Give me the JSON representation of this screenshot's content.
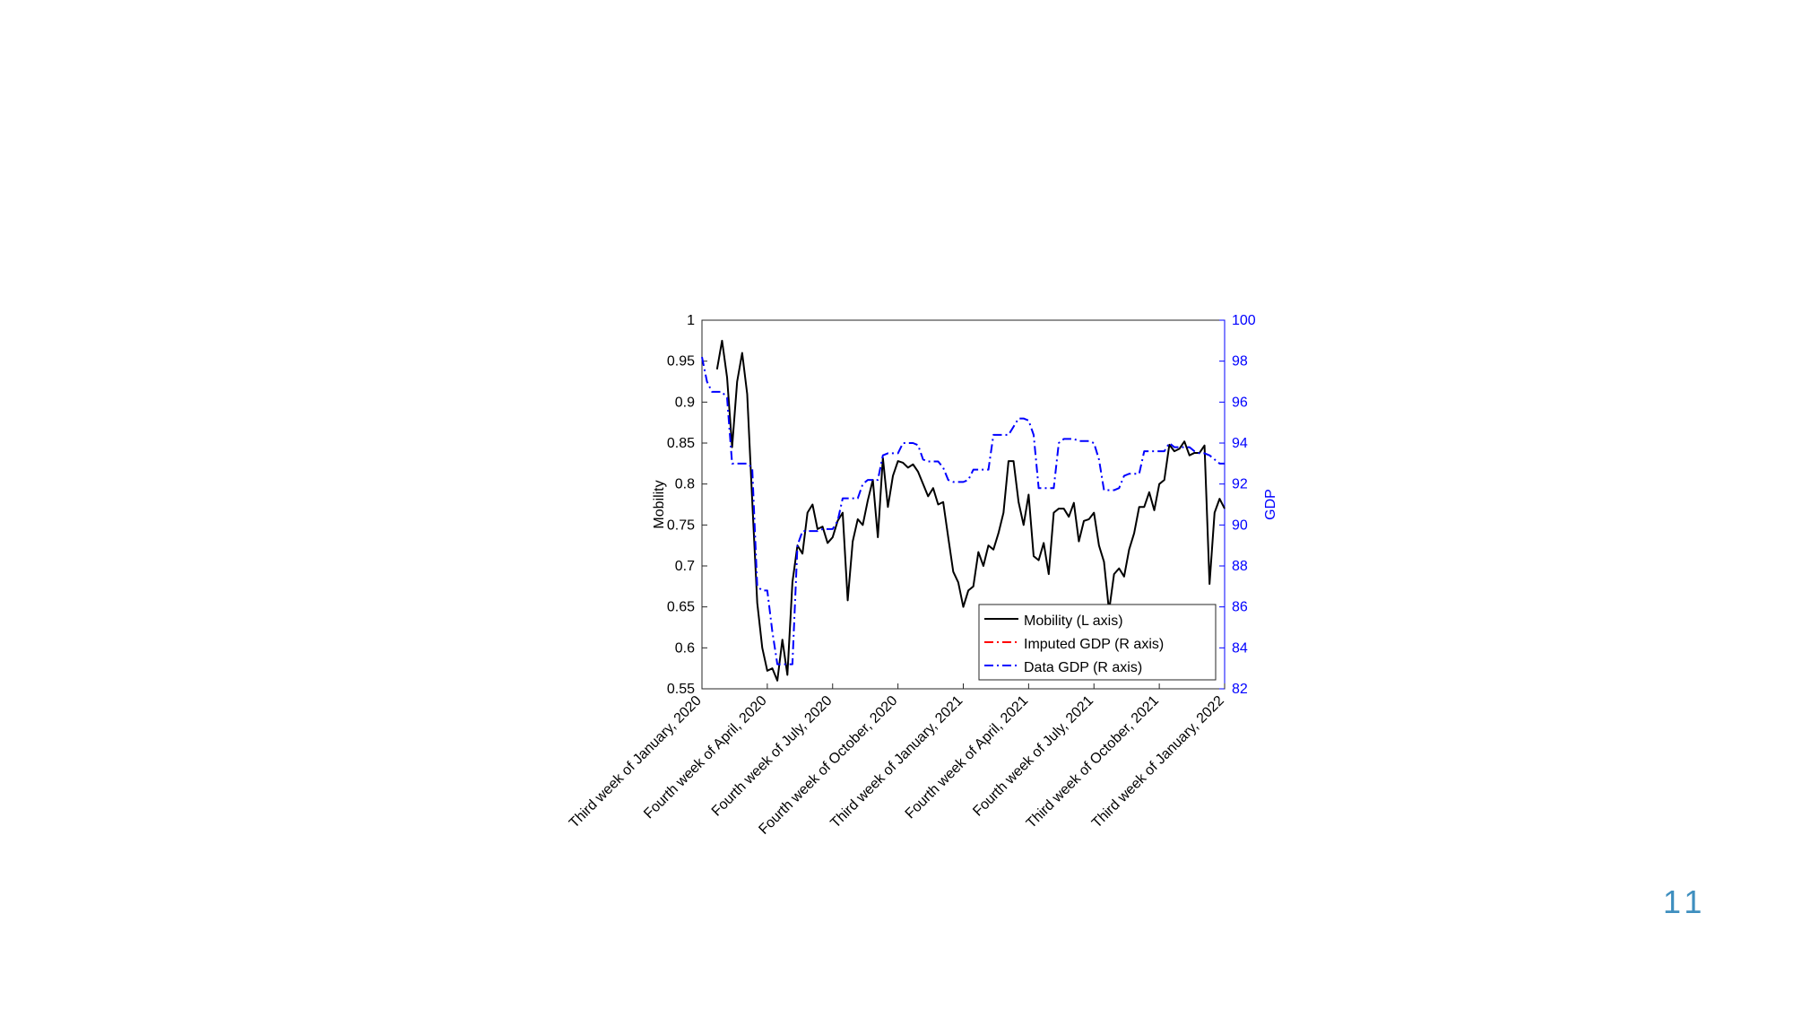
{
  "chart_data": {
    "type": "line",
    "categories": [
      "Third week of January, 2020",
      null,
      null,
      null,
      null,
      null,
      null,
      null,
      null,
      null,
      null,
      null,
      null,
      "Fourth week of April, 2020",
      null,
      null,
      null,
      null,
      null,
      null,
      null,
      null,
      null,
      null,
      null,
      null,
      "Fourth week of July, 2020",
      null,
      null,
      null,
      null,
      null,
      null,
      null,
      null,
      null,
      null,
      null,
      null,
      "Fourth week of October, 2020",
      null,
      null,
      null,
      null,
      null,
      null,
      null,
      null,
      null,
      null,
      null,
      null,
      "Third week of January, 2021",
      null,
      null,
      null,
      null,
      null,
      null,
      null,
      null,
      null,
      null,
      null,
      null,
      "Fourth week of April, 2021",
      null,
      null,
      null,
      null,
      null,
      null,
      null,
      null,
      null,
      null,
      null,
      null,
      "Fourth week of July, 2021",
      null,
      null,
      null,
      null,
      null,
      null,
      null,
      null,
      null,
      null,
      null,
      null,
      "Third week of October, 2021",
      null,
      null,
      null,
      null,
      null,
      null,
      null,
      null,
      null,
      null,
      null,
      null,
      "Third week of January, 2022"
    ],
    "ylabel": "Mobility",
    "y2label": "GDP",
    "ylim": [
      0.55,
      1
    ],
    "yticks": [
      0.55,
      0.6,
      0.65,
      0.7,
      0.75,
      0.8,
      0.85,
      0.9,
      0.95,
      1
    ],
    "y2lim": [
      82,
      100
    ],
    "y2ticks": [
      82,
      84,
      86,
      88,
      90,
      92,
      94,
      96,
      98,
      100
    ],
    "legend": "lower right",
    "y2color": "#0000ff",
    "series": [
      {
        "name": "Mobility (L axis)",
        "color": "#000000",
        "linestyle": "-",
        "values": [
          null,
          null,
          null,
          0.94,
          0.975,
          0.93,
          0.845,
          0.925,
          0.96,
          0.91,
          0.78,
          0.655,
          0.6,
          0.572,
          0.575,
          0.56,
          0.61,
          0.567,
          0.68,
          0.725,
          0.715,
          0.765,
          0.775,
          0.745,
          0.748,
          0.728,
          0.735,
          0.755,
          0.765,
          0.658,
          0.73,
          0.757,
          0.75,
          0.78,
          0.805,
          0.735,
          0.832,
          0.772,
          0.81,
          0.828,
          0.826,
          0.82,
          0.824,
          0.815,
          0.8,
          0.785,
          0.795,
          0.775,
          0.778,
          0.735,
          0.693,
          0.68,
          0.65,
          0.67,
          0.675,
          0.717,
          0.7,
          0.725,
          0.72,
          0.74,
          0.765,
          0.828,
          0.828,
          0.778,
          0.75,
          0.787,
          0.712,
          0.707,
          0.728,
          0.69,
          0.765,
          0.77,
          0.77,
          0.76,
          0.777,
          0.73,
          0.755,
          0.757,
          0.765,
          0.725,
          0.705,
          0.645,
          0.69,
          0.697,
          0.687,
          0.72,
          0.74,
          0.772,
          0.772,
          0.79,
          0.768,
          0.8,
          0.805,
          0.848,
          0.84,
          0.843,
          0.852,
          0.835,
          0.838,
          0.838,
          0.847,
          0.678,
          0.765,
          0.782,
          0.77
        ]
      },
      {
        "name": "Imputed GDP (R axis)",
        "color": "#ff0000",
        "linestyle": "-.",
        "axis": "y2",
        "values": [
          null,
          null,
          null,
          null,
          null,
          null,
          null,
          null,
          null,
          null,
          null,
          null,
          null,
          null,
          null,
          null,
          null,
          null,
          null,
          null,
          null,
          null,
          null,
          null,
          null,
          null,
          null,
          null,
          null,
          null,
          null,
          null,
          null,
          null,
          null,
          null,
          null,
          null,
          null,
          null,
          null,
          null,
          null,
          null,
          null,
          null,
          null,
          null,
          null,
          null,
          null,
          null,
          null,
          null,
          null,
          null,
          null,
          null,
          null,
          null,
          null,
          null,
          null,
          null,
          null,
          null,
          null,
          null,
          null,
          null,
          null,
          null,
          null,
          null,
          null,
          null,
          null,
          null,
          null,
          null,
          null,
          null,
          null,
          null,
          null,
          null,
          null,
          null,
          null,
          null,
          null,
          null,
          null,
          null,
          null,
          null,
          null,
          null,
          null,
          null,
          null,
          null,
          null,
          null,
          null
        ]
      },
      {
        "name": "Data GDP (R axis)",
        "color": "#0000ff",
        "linestyle": "-.",
        "axis": "y2",
        "values": [
          98.2,
          97,
          96.5,
          96.5,
          96.5,
          96.2,
          93,
          93,
          93,
          93,
          92.8,
          87,
          86.8,
          86.8,
          84.8,
          83.2,
          83.2,
          83.2,
          83.2,
          89,
          89.7,
          89.7,
          89.7,
          89.7,
          89.8,
          89.8,
          89.8,
          90.2,
          91.3,
          91.3,
          91.3,
          91.3,
          92,
          92.2,
          92.2,
          92.2,
          93.4,
          93.5,
          93.5,
          93.5,
          94,
          94,
          94,
          93.9,
          93.2,
          93.1,
          93.1,
          93.1,
          92.8,
          92.2,
          92.1,
          92.1,
          92.1,
          92.2,
          92.7,
          92.7,
          92.7,
          92.7,
          94.4,
          94.4,
          94.4,
          94.4,
          94.8,
          95.2,
          95.2,
          95.1,
          94.4,
          91.8,
          91.8,
          91.8,
          91.8,
          94,
          94.2,
          94.2,
          94.2,
          94.1,
          94.1,
          94.1,
          94,
          93.2,
          91.7,
          91.7,
          91.7,
          91.8,
          92.4,
          92.5,
          92.5,
          92.5,
          93.6,
          93.6,
          93.6,
          93.6,
          93.6,
          94,
          93.8,
          93.8,
          93.8,
          93.8,
          93.6,
          93.5,
          93.5,
          93.4,
          93.2,
          93,
          93
        ]
      }
    ]
  },
  "page_number": "11"
}
